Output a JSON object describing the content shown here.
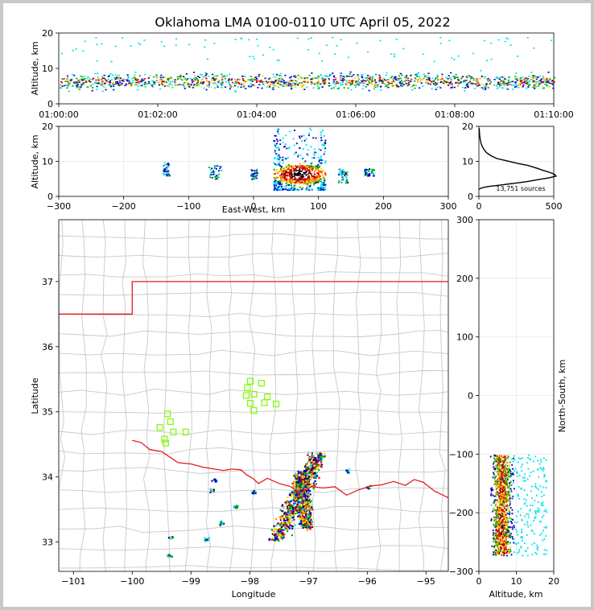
{
  "title": "Oklahoma LMA 0100-0110 UTC April 05, 2022",
  "colors": {
    "frame_bg": "#c8c8c8",
    "state_border": "#e41a1c",
    "county_lines": "#c8c8c8",
    "stations": "#7cfc00",
    "density_scale": [
      "#00e5ee",
      "#0000cd",
      "#00aa00",
      "#ffd700",
      "#ff8c00",
      "#e60000",
      "#8b0000",
      "#ffffff",
      "#000000"
    ]
  },
  "chart_data": [
    {
      "id": "time-altitude",
      "type": "heatmap",
      "ylabel": "Altitude, km",
      "xlabel": "",
      "xticks": [
        "01:00:00",
        "01:02:00",
        "01:04:00",
        "01:06:00",
        "01:08:00",
        "01:10:00"
      ],
      "xlim_minutes": [
        0,
        10
      ],
      "ylim": [
        0,
        20
      ],
      "yticks": [
        0,
        10,
        20
      ],
      "altitude_band_km": [
        2,
        12
      ],
      "peak_altitude_km": 6.5
    },
    {
      "id": "eastwest-altitude",
      "type": "heatmap",
      "ylabel": "Altitude, km",
      "xlabel": "East-West, km",
      "xlim": [
        -300,
        300
      ],
      "xticks": [
        -300,
        -200,
        -100,
        0,
        100,
        200,
        300
      ],
      "ylim": [
        0,
        20
      ],
      "yticks": [
        0,
        10,
        20
      ],
      "clusters": [
        {
          "x": [
            -140,
            -130
          ],
          "alt": [
            6,
            10
          ]
        },
        {
          "x": [
            -70,
            -50
          ],
          "alt": [
            5,
            9
          ]
        },
        {
          "x": [
            -5,
            5
          ],
          "alt": [
            5,
            8
          ]
        },
        {
          "x": [
            30,
            110
          ],
          "alt": [
            2,
            20
          ],
          "core_x": [
            40,
            100
          ],
          "core_alt": [
            4,
            9
          ]
        },
        {
          "x": [
            130,
            145
          ],
          "alt": [
            4,
            8
          ]
        },
        {
          "x": [
            170,
            185
          ],
          "alt": [
            6,
            8
          ]
        }
      ]
    },
    {
      "id": "altitude-histogram",
      "type": "line",
      "xlim": [
        0,
        500
      ],
      "xticks": [
        0,
        500
      ],
      "ylim": [
        0,
        20
      ],
      "yticks": [
        0,
        10,
        20
      ],
      "annotation": "13,751 sources",
      "profile": [
        [
          0,
          2
        ],
        [
          15,
          2.4
        ],
        [
          60,
          2.8
        ],
        [
          140,
          3.2
        ],
        [
          230,
          3.7
        ],
        [
          320,
          4.2
        ],
        [
          400,
          4.8
        ],
        [
          470,
          5.3
        ],
        [
          515,
          5.8
        ],
        [
          505,
          6.3
        ],
        [
          470,
          6.9
        ],
        [
          430,
          7.4
        ],
        [
          390,
          8
        ],
        [
          330,
          8.8
        ],
        [
          250,
          9.5
        ],
        [
          180,
          10.2
        ],
        [
          120,
          10.8
        ],
        [
          80,
          11.6
        ],
        [
          50,
          12.5
        ],
        [
          32,
          13.5
        ],
        [
          20,
          14.5
        ],
        [
          12,
          15.5
        ],
        [
          8,
          16.5
        ],
        [
          5,
          17.5
        ],
        [
          3,
          18.5
        ],
        [
          2,
          19.5
        ]
      ]
    },
    {
      "id": "plan-view",
      "type": "scatter",
      "xlabel": "Longitude",
      "ylabel": "Latitude",
      "xlim": [
        -101.25,
        -94.62
      ],
      "ylim": [
        32.55,
        37.95
      ],
      "xticks": [
        -101,
        -100,
        -99,
        -98,
        -97,
        -96,
        -95
      ],
      "yticks": [
        33,
        34,
        35,
        36,
        37
      ],
      "oklahoma_border": [
        [
          -94.62,
          37.0
        ],
        [
          -100.0,
          37.0
        ],
        [
          -100.0,
          36.5
        ],
        [
          -101.25,
          36.5
        ]
      ],
      "red_river": [
        [
          -100.0,
          34.56
        ],
        [
          -99.85,
          34.53
        ],
        [
          -99.7,
          34.42
        ],
        [
          -99.5,
          34.39
        ],
        [
          -99.35,
          34.3
        ],
        [
          -99.22,
          34.22
        ],
        [
          -99.0,
          34.2
        ],
        [
          -98.8,
          34.15
        ],
        [
          -98.6,
          34.12
        ],
        [
          -98.45,
          34.1
        ],
        [
          -98.3,
          34.12
        ],
        [
          -98.15,
          34.11
        ],
        [
          -98.05,
          34.03
        ],
        [
          -97.95,
          33.98
        ],
        [
          -97.85,
          33.9
        ],
        [
          -97.7,
          33.98
        ],
        [
          -97.5,
          33.9
        ],
        [
          -97.3,
          33.85
        ],
        [
          -97.15,
          33.75
        ],
        [
          -96.95,
          33.85
        ],
        [
          -96.75,
          33.83
        ],
        [
          -96.55,
          33.85
        ],
        [
          -96.35,
          33.72
        ],
        [
          -96.15,
          33.8
        ],
        [
          -95.95,
          33.86
        ],
        [
          -95.75,
          33.88
        ],
        [
          -95.55,
          33.93
        ],
        [
          -95.35,
          33.87
        ],
        [
          -95.2,
          33.96
        ],
        [
          -95.05,
          33.92
        ],
        [
          -94.85,
          33.78
        ],
        [
          -94.62,
          33.68
        ]
      ],
      "stations": [
        [
          -97.99,
          35.47
        ],
        [
          -98.04,
          35.37
        ],
        [
          -98.06,
          35.25
        ],
        [
          -97.93,
          35.27
        ],
        [
          -97.8,
          35.44
        ],
        [
          -97.7,
          35.23
        ],
        [
          -97.99,
          35.13
        ],
        [
          -97.75,
          35.14
        ],
        [
          -97.55,
          35.12
        ],
        [
          -97.93,
          35.02
        ],
        [
          -99.4,
          34.97
        ],
        [
          -99.35,
          34.85
        ],
        [
          -99.53,
          34.76
        ],
        [
          -99.3,
          34.69
        ],
        [
          -99.45,
          34.58
        ],
        [
          -99.43,
          34.52
        ],
        [
          -99.09,
          34.69
        ]
      ],
      "source_lines": [
        {
          "from": [
            -96.85,
            34.35
          ],
          "to": [
            -97.55,
            33.05
          ],
          "width_deg": 0.3
        },
        {
          "from": [
            -97.15,
            34.05
          ],
          "to": [
            -97.05,
            33.25
          ],
          "width_deg": 0.22
        }
      ],
      "isolated_cells": [
        [
          -96.35,
          34.1
        ],
        [
          -96.0,
          33.85
        ],
        [
          -98.6,
          33.95
        ],
        [
          -98.65,
          33.8
        ],
        [
          -98.25,
          33.55
        ],
        [
          -98.5,
          33.3
        ],
        [
          -98.75,
          33.05
        ],
        [
          -99.35,
          33.08
        ],
        [
          -99.38,
          32.8
        ],
        [
          -97.95,
          33.78
        ]
      ]
    },
    {
      "id": "northsouth-altitude",
      "type": "heatmap",
      "xlabel": "Altitude, km",
      "ylabel": "North-South, km",
      "xlim": [
        0,
        20
      ],
      "xticks": [
        0,
        10,
        20
      ],
      "ylim": [
        -300,
        300
      ],
      "yticks": [
        -300,
        -200,
        -100,
        0,
        100,
        200,
        300
      ],
      "band_ns": [
        -272,
        -100
      ],
      "band_alt": [
        2,
        20
      ]
    }
  ]
}
